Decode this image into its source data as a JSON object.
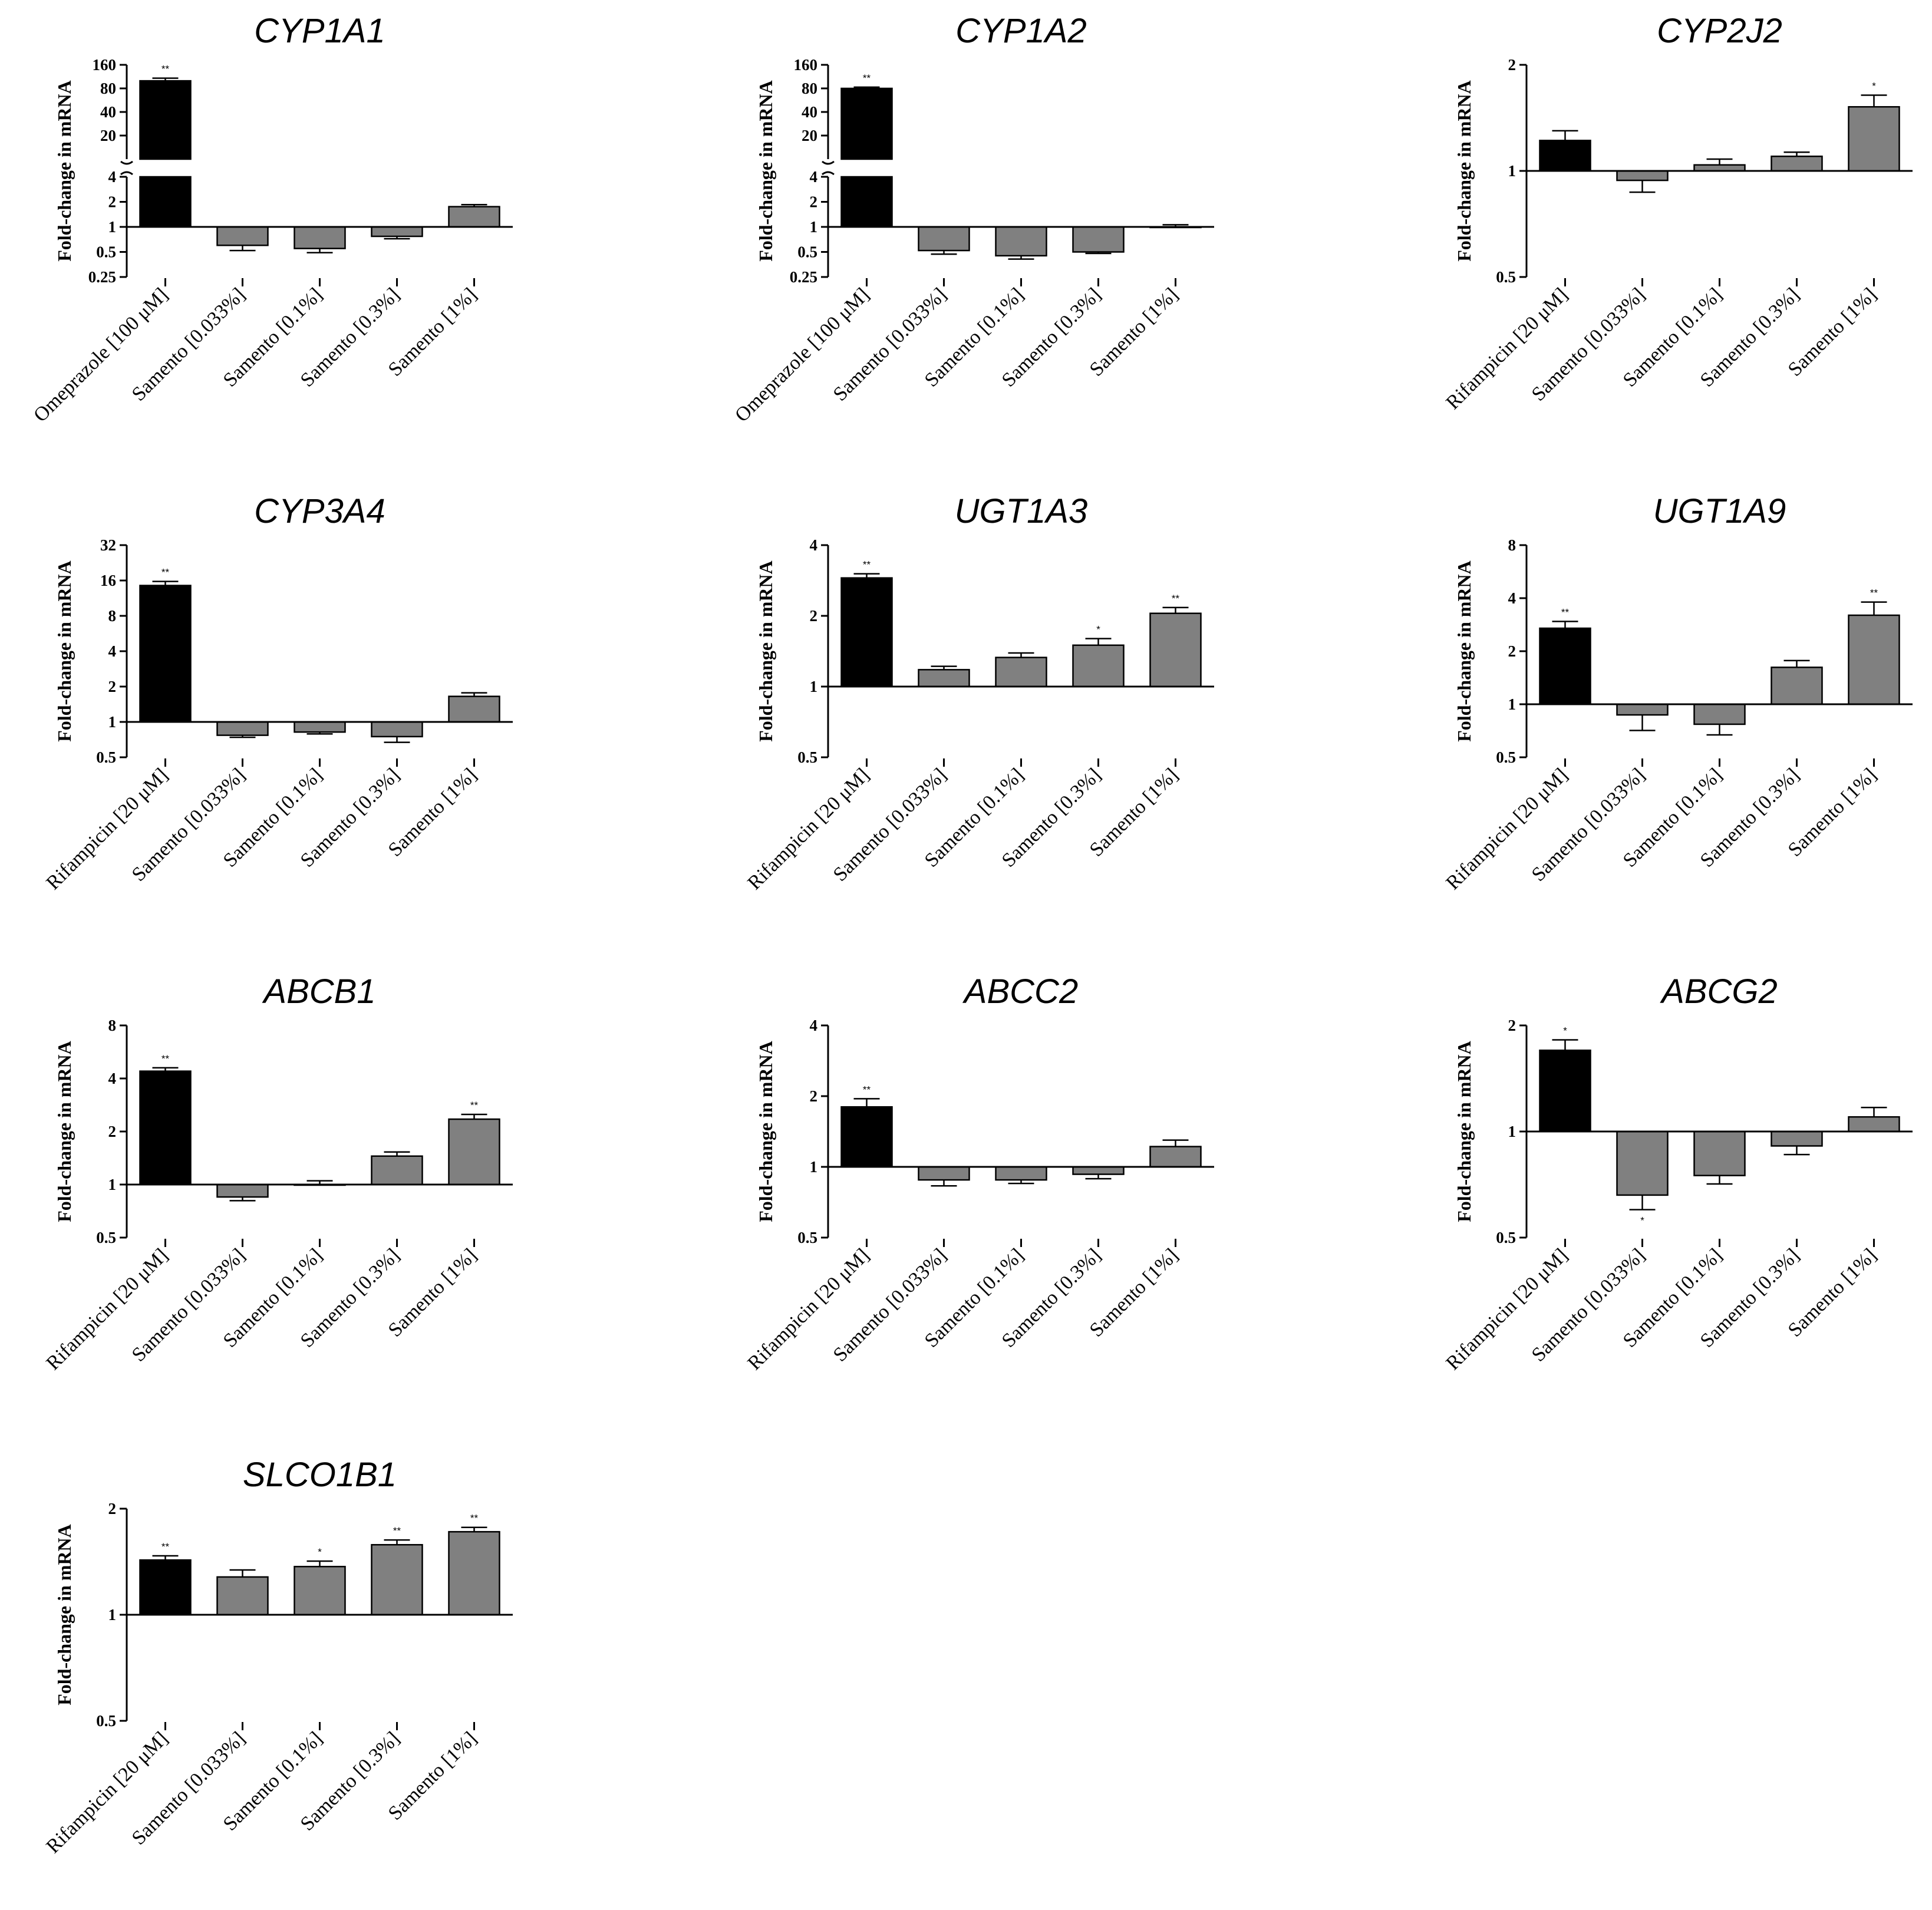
{
  "ylabel": "Fold-change in mRNA",
  "colors": {
    "control": "#000000",
    "treatment": "#808080",
    "axis": "#000000"
  },
  "chart_data": [
    {
      "type": "bar",
      "scale": "log2-broken",
      "title": "CYP1A1",
      "ylabel": "Fold-change in mRNA",
      "upper_ticks": [
        "160",
        "80",
        "40",
        "20"
      ],
      "upper_tick_values": [
        160,
        80,
        40,
        20
      ],
      "upper_range": [
        10,
        160
      ],
      "lower_ticks": [
        "4",
        "2",
        "1",
        "0.5",
        "0.25"
      ],
      "lower_tick_values": [
        4,
        2,
        1,
        0.5,
        0.25
      ],
      "ylim": [
        0.25,
        4
      ],
      "categories": [
        "Omeprazole [100 μM]",
        "Samento [0.033%]",
        "Samento [0.1%]",
        "Samento [0.3%]",
        "Samento [1%]"
      ],
      "values": [
        100,
        0.6,
        0.55,
        0.77,
        1.75
      ],
      "errors": [
        8,
        0.08,
        0.06,
        0.05,
        0.1
      ],
      "annotations": [
        "**",
        "",
        "",
        "",
        ""
      ]
    },
    {
      "type": "bar",
      "scale": "log2-broken",
      "title": "CYP1A2",
      "ylabel": "Fold-change in mRNA",
      "upper_ticks": [
        "160",
        "80",
        "40",
        "20"
      ],
      "upper_tick_values": [
        160,
        80,
        40,
        20
      ],
      "upper_range": [
        10,
        160
      ],
      "lower_ticks": [
        "4",
        "2",
        "1",
        "0.5",
        "0.25"
      ],
      "lower_tick_values": [
        4,
        2,
        1,
        0.5,
        0.25
      ],
      "ylim": [
        0.25,
        4
      ],
      "categories": [
        "Omeprazole [100 μM]",
        "Samento [0.033%]",
        "Samento [0.1%]",
        "Samento [0.3%]",
        "Samento [1%]"
      ],
      "values": [
        80,
        0.52,
        0.45,
        0.5,
        1.0
      ],
      "errors": [
        3,
        0.05,
        0.04,
        0.02,
        0.06
      ],
      "annotations": [
        "**",
        "",
        "",
        "",
        ""
      ]
    },
    {
      "type": "bar",
      "scale": "log2",
      "title": "CYP2J2",
      "ylabel": "Fold-change in mRNA",
      "ticks": [
        "2",
        "1",
        "0.5"
      ],
      "tick_values": [
        2,
        1,
        0.5
      ],
      "ylim": [
        0.5,
        2
      ],
      "categories": [
        "Rifampicin [20 μM]",
        "Samento [0.033%]",
        "Samento [0.1%]",
        "Samento [0.3%]",
        "Samento [1%]"
      ],
      "values": [
        1.22,
        0.94,
        1.04,
        1.1,
        1.52
      ],
      "errors": [
        0.08,
        0.07,
        0.04,
        0.03,
        0.12
      ],
      "annotations": [
        "",
        "",
        "",
        "",
        "*"
      ]
    },
    {
      "type": "bar",
      "scale": "log2",
      "title": "CYP3A4",
      "ylabel": "Fold-change in mRNA",
      "ticks": [
        "32",
        "16",
        "8",
        "4",
        "2",
        "1",
        "0.5"
      ],
      "tick_values": [
        32,
        16,
        8,
        4,
        2,
        1,
        0.5
      ],
      "ylim": [
        0.5,
        32
      ],
      "categories": [
        "Rifampicin [20 μM]",
        "Samento [0.033%]",
        "Samento [0.1%]",
        "Samento [0.3%]",
        "Samento [1%]"
      ],
      "values": [
        14.5,
        0.77,
        0.82,
        0.75,
        1.65
      ],
      "errors": [
        1.2,
        0.03,
        0.03,
        0.08,
        0.12
      ],
      "annotations": [
        "**",
        "",
        "",
        "",
        ""
      ]
    },
    {
      "type": "bar",
      "scale": "log2",
      "title": "UGT1A3",
      "ylabel": "Fold-change in mRNA",
      "ticks": [
        "4",
        "2",
        "1",
        "0.5"
      ],
      "tick_values": [
        4,
        2,
        1,
        0.5
      ],
      "ylim": [
        0.5,
        4
      ],
      "categories": [
        "Rifampicin [20 μM]",
        "Samento [0.033%]",
        "Samento [0.1%]",
        "Samento [0.3%]",
        "Samento [1%]"
      ],
      "values": [
        2.9,
        1.18,
        1.33,
        1.5,
        2.05
      ],
      "errors": [
        0.12,
        0.04,
        0.06,
        0.1,
        0.12
      ],
      "annotations": [
        "**",
        "",
        "",
        "*",
        "**"
      ]
    },
    {
      "type": "bar",
      "scale": "log2",
      "title": "UGT1A9",
      "ylabel": "Fold-change in mRNA",
      "ticks": [
        "8",
        "4",
        "2",
        "1",
        "0.5"
      ],
      "tick_values": [
        8,
        4,
        2,
        1,
        0.5
      ],
      "ylim": [
        0.5,
        8
      ],
      "categories": [
        "Rifampicin [20 μM]",
        "Samento [0.033%]",
        "Samento [0.1%]",
        "Samento [0.3%]",
        "Samento [1%]"
      ],
      "values": [
        2.7,
        0.87,
        0.77,
        1.62,
        3.2
      ],
      "errors": [
        0.25,
        0.16,
        0.1,
        0.15,
        0.6
      ],
      "annotations": [
        "**",
        "",
        "",
        "",
        "**"
      ]
    },
    {
      "type": "bar",
      "scale": "log2",
      "title": "ABCB1",
      "ylabel": "Fold-change in mRNA",
      "ticks": [
        "8",
        "4",
        "2",
        "1",
        "0.5"
      ],
      "tick_values": [
        8,
        4,
        2,
        1,
        0.5
      ],
      "ylim": [
        0.5,
        8
      ],
      "categories": [
        "Rifampicin [20 μM]",
        "Samento [0.033%]",
        "Samento [0.1%]",
        "Samento [0.3%]",
        "Samento [1%]"
      ],
      "values": [
        4.4,
        0.85,
        1.0,
        1.45,
        2.35
      ],
      "errors": [
        0.2,
        0.04,
        0.05,
        0.08,
        0.15
      ],
      "annotations": [
        "**",
        "",
        "",
        "",
        "**"
      ]
    },
    {
      "type": "bar",
      "scale": "log2",
      "title": "ABCC2",
      "ylabel": "Fold-change in mRNA",
      "ticks": [
        "4",
        "2",
        "1",
        "0.5"
      ],
      "tick_values": [
        4,
        2,
        1,
        0.5
      ],
      "ylim": [
        0.5,
        4
      ],
      "categories": [
        "Rifampicin [20 μM]",
        "Samento [0.033%]",
        "Samento [0.1%]",
        "Samento [0.3%]",
        "Samento [1%]"
      ],
      "values": [
        1.8,
        0.88,
        0.88,
        0.93,
        1.22
      ],
      "errors": [
        0.15,
        0.05,
        0.03,
        0.04,
        0.08
      ],
      "annotations": [
        "**",
        "",
        "",
        "",
        ""
      ]
    },
    {
      "type": "bar",
      "scale": "log2",
      "title": "ABCG2",
      "ylabel": "Fold-change in mRNA",
      "ticks": [
        "2",
        "1",
        "0.5"
      ],
      "tick_values": [
        2,
        1,
        0.5
      ],
      "ylim": [
        0.5,
        2
      ],
      "categories": [
        "Rifampicin [20 μM]",
        "Samento [0.033%]",
        "Samento [0.1%]",
        "Samento [0.3%]",
        "Samento [1%]"
      ],
      "values": [
        1.7,
        0.66,
        0.75,
        0.91,
        1.1
      ],
      "errors": [
        0.12,
        0.06,
        0.04,
        0.05,
        0.07
      ],
      "annotations": [
        "*",
        "*",
        "",
        "",
        ""
      ]
    },
    {
      "type": "bar",
      "scale": "log2",
      "title": "SLCO1B1",
      "ylabel": "Fold-change in mRNA",
      "ticks": [
        "2",
        "1",
        "0.5"
      ],
      "tick_values": [
        2,
        1,
        0.5
      ],
      "ylim": [
        0.5,
        2
      ],
      "categories": [
        "Rifampicin [20 μM]",
        "Samento [0.033%]",
        "Samento [0.1%]",
        "Samento [0.3%]",
        "Samento [1%]"
      ],
      "values": [
        1.43,
        1.28,
        1.37,
        1.58,
        1.72
      ],
      "errors": [
        0.04,
        0.06,
        0.05,
        0.05,
        0.05
      ],
      "annotations": [
        "**",
        "",
        "*",
        "**",
        "**"
      ]
    }
  ]
}
